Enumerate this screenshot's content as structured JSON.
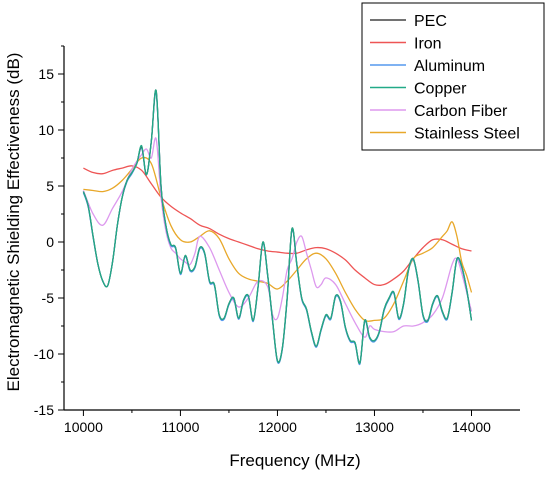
{
  "chart_data": {
    "type": "line",
    "title": "",
    "xlabel": "Frequency (MHz)",
    "ylabel": "Electromagnetic Shielding Effectiveness (dB)",
    "xlim": [
      9800,
      14500
    ],
    "ylim": [
      -15,
      17.5
    ],
    "xticks": [
      10000,
      11000,
      12000,
      13000,
      14000
    ],
    "yticks": [
      -15,
      -10,
      -5,
      0,
      5,
      10,
      15
    ],
    "grid": false,
    "legend_position": "top-right",
    "series": [
      {
        "name": "PEC",
        "color": "#444444",
        "x": [
          10000,
          10050,
          10100,
          10150,
          10200,
          10250,
          10300,
          10350,
          10400,
          10450,
          10500,
          10550,
          10600,
          10650,
          10700,
          10750,
          10800,
          10850,
          10900,
          10950,
          11000,
          11050,
          11100,
          11150,
          11200,
          11250,
          11300,
          11350,
          11400,
          11450,
          11500,
          11550,
          11600,
          11650,
          11700,
          11750,
          11800,
          11850,
          11900,
          11950,
          12000,
          12050,
          12100,
          12150,
          12200,
          12250,
          12300,
          12350,
          12400,
          12450,
          12500,
          12550,
          12600,
          12650,
          12700,
          12750,
          12800,
          12850,
          12900,
          12950,
          13000,
          13050,
          13100,
          13150,
          13200,
          13250,
          13300,
          13350,
          13400,
          13450,
          13500,
          13550,
          13600,
          13650,
          13700,
          13750,
          13800,
          13850,
          13900,
          13950,
          14000
        ],
        "y": [
          4.5,
          3.2,
          0.5,
          -2,
          -3.5,
          -3.9,
          -1.8,
          1.5,
          4,
          5.5,
          6.2,
          7,
          8.5,
          6,
          9,
          13.5,
          5,
          1.5,
          -0.2,
          -0.5,
          -2.8,
          -1.2,
          -2.5,
          -2.2,
          -0.5,
          -1,
          -3.5,
          -3.8,
          -6.5,
          -6.8,
          -5.5,
          -5,
          -6.8,
          -5.2,
          -4.8,
          -7,
          -4,
          0,
          -3,
          -7,
          -10.6,
          -9.5,
          -5,
          1.2,
          -2,
          -5,
          -6,
          -8,
          -9.3,
          -7.8,
          -6.5,
          -6.8,
          -4.8,
          -5.3,
          -7.6,
          -8.8,
          -9,
          -10.8,
          -7,
          -8.5,
          -8.8,
          -8,
          -6,
          -5,
          -4.5,
          -6.8,
          -5.5,
          -2.5,
          -1.5,
          -3.5,
          -6.5,
          -7,
          -5.5,
          -4.8,
          -6.2,
          -6.8,
          -4.5,
          -1.5,
          -2.2,
          -4.2,
          -7
        ]
      },
      {
        "name": "Iron",
        "color": "#ee5555",
        "x": [
          10000,
          10100,
          10200,
          10300,
          10400,
          10500,
          10600,
          10700,
          10800,
          10900,
          11000,
          11100,
          11200,
          11300,
          11400,
          11500,
          11600,
          11700,
          11800,
          11900,
          12000,
          12100,
          12200,
          12300,
          12400,
          12500,
          12600,
          12700,
          12800,
          12900,
          13000,
          13100,
          13200,
          13300,
          13400,
          13500,
          13600,
          13700,
          13800,
          13900,
          14000
        ],
        "y": [
          6.6,
          6.2,
          6.1,
          6.4,
          6.6,
          6.8,
          6.4,
          5.2,
          4,
          3.2,
          2.6,
          2.1,
          1.5,
          1.2,
          0.7,
          0.3,
          0,
          -0.3,
          -0.6,
          -0.8,
          -0.9,
          -1,
          -1,
          -0.7,
          -0.5,
          -0.6,
          -1,
          -1.6,
          -2.5,
          -3.2,
          -3.8,
          -3.8,
          -3.3,
          -2.6,
          -1.5,
          -0.5,
          0.2,
          0.2,
          -0.2,
          -0.6,
          -0.8
        ]
      },
      {
        "name": "Aluminum",
        "color": "#5599ee",
        "x": [
          10000,
          10050,
          10100,
          10150,
          10200,
          10250,
          10300,
          10350,
          10400,
          10450,
          10500,
          10550,
          10600,
          10650,
          10700,
          10750,
          10800,
          10850,
          10900,
          10950,
          11000,
          11050,
          11100,
          11150,
          11200,
          11250,
          11300,
          11350,
          11400,
          11450,
          11500,
          11550,
          11600,
          11650,
          11700,
          11750,
          11800,
          11850,
          11900,
          11950,
          12000,
          12050,
          12100,
          12150,
          12200,
          12250,
          12300,
          12350,
          12400,
          12450,
          12500,
          12550,
          12600,
          12650,
          12700,
          12750,
          12800,
          12850,
          12900,
          12950,
          13000,
          13050,
          13100,
          13150,
          13200,
          13250,
          13300,
          13350,
          13400,
          13450,
          13500,
          13550,
          13600,
          13650,
          13700,
          13750,
          13800,
          13850,
          13900,
          13950,
          14000
        ],
        "y": [
          4.4,
          3.1,
          0.4,
          -2,
          -3.5,
          -3.9,
          -1.8,
          1.5,
          4,
          5.4,
          6.1,
          7,
          8.4,
          6,
          9,
          13.3,
          5,
          1.4,
          -0.3,
          -0.6,
          -2.9,
          -1.3,
          -2.6,
          -2.3,
          -0.6,
          -1.1,
          -3.6,
          -3.9,
          -6.6,
          -6.9,
          -5.6,
          -5.1,
          -6.9,
          -5.3,
          -4.9,
          -7.1,
          -4.1,
          -0.1,
          -3.1,
          -7.1,
          -10.7,
          -9.6,
          -5.1,
          1.1,
          -2.1,
          -5.1,
          -6.1,
          -8.1,
          -9.4,
          -7.9,
          -6.6,
          -6.9,
          -4.9,
          -5.4,
          -7.7,
          -8.9,
          -9.1,
          -10.9,
          -7.1,
          -8.6,
          -8.9,
          -8.1,
          -6.1,
          -5.1,
          -4.6,
          -6.9,
          -5.6,
          -2.6,
          -1.6,
          -3.6,
          -6.6,
          -7.1,
          -5.6,
          -4.9,
          -6.3,
          -6.9,
          -4.6,
          -1.6,
          -2.3,
          -4.3,
          -7
        ]
      },
      {
        "name": "Copper",
        "color": "#22aa88",
        "x": [
          10000,
          10050,
          10100,
          10150,
          10200,
          10250,
          10300,
          10350,
          10400,
          10450,
          10500,
          10550,
          10600,
          10650,
          10700,
          10750,
          10800,
          10850,
          10900,
          10950,
          11000,
          11050,
          11100,
          11150,
          11200,
          11250,
          11300,
          11350,
          11400,
          11450,
          11500,
          11550,
          11600,
          11650,
          11700,
          11750,
          11800,
          11850,
          11900,
          11950,
          12000,
          12050,
          12100,
          12150,
          12200,
          12250,
          12300,
          12350,
          12400,
          12450,
          12500,
          12550,
          12600,
          12650,
          12700,
          12750,
          12800,
          12850,
          12900,
          12950,
          13000,
          13050,
          13100,
          13150,
          13200,
          13250,
          13300,
          13350,
          13400,
          13450,
          13500,
          13550,
          13600,
          13650,
          13700,
          13750,
          13800,
          13850,
          13900,
          13950,
          14000
        ],
        "y": [
          4.5,
          3.2,
          0.5,
          -2,
          -3.5,
          -3.9,
          -1.8,
          1.5,
          4,
          5.5,
          6.2,
          7,
          8.6,
          6,
          9,
          13.5,
          5,
          1.5,
          -0.2,
          -0.5,
          -2.8,
          -1.2,
          -2.5,
          -2.2,
          -0.5,
          -1,
          -3.5,
          -3.8,
          -6.5,
          -6.8,
          -5.5,
          -5,
          -6.8,
          -5.2,
          -4.8,
          -7,
          -4,
          0,
          -3,
          -7,
          -10.6,
          -9.5,
          -5,
          1.2,
          -2,
          -5,
          -6,
          -8,
          -9.3,
          -7.8,
          -6.5,
          -6.8,
          -4.8,
          -5.3,
          -7.6,
          -8.8,
          -9,
          -10.8,
          -7,
          -8.5,
          -8.8,
          -8,
          -6,
          -5,
          -4.5,
          -6.8,
          -5.5,
          -2.5,
          -1.5,
          -3.5,
          -6.5,
          -7,
          -5.5,
          -4.8,
          -6.2,
          -6.8,
          -4.5,
          -1.5,
          -2.2,
          -4.2,
          -7
        ]
      },
      {
        "name": "Carbon Fiber",
        "color": "#dd99ee",
        "x": [
          10000,
          10100,
          10200,
          10300,
          10400,
          10500,
          10600,
          10650,
          10700,
          10750,
          10800,
          10850,
          10900,
          10950,
          11000,
          11050,
          11100,
          11150,
          11200,
          11300,
          11400,
          11500,
          11600,
          11700,
          11800,
          11900,
          11950,
          12000,
          12050,
          12100,
          12150,
          12200,
          12250,
          12300,
          12350,
          12400,
          12450,
          12500,
          12600,
          12700,
          12800,
          12900,
          12950,
          13000,
          13100,
          13200,
          13300,
          13400,
          13500,
          13600,
          13700,
          13800,
          13850,
          13900,
          14000
        ],
        "y": [
          4.6,
          2.5,
          1.5,
          3,
          4.5,
          6.5,
          7.8,
          8.3,
          7.5,
          9.2,
          4,
          1,
          -0.5,
          -1,
          -1.5,
          -1.8,
          -2,
          -1,
          0.5,
          -0.5,
          -2.5,
          -4.5,
          -5.8,
          -5,
          -3.5,
          -4,
          -6.5,
          -6.8,
          -5,
          -2.5,
          -1.5,
          0,
          0.5,
          -1,
          -2.5,
          -4,
          -3.8,
          -3.2,
          -3.8,
          -5.5,
          -7.2,
          -8.5,
          -7.5,
          -7.8,
          -8,
          -8,
          -7.5,
          -7.5,
          -7.2,
          -6.5,
          -5,
          -2,
          -1.5,
          -2.8,
          -6.2
        ]
      },
      {
        "name": "Stainless Steel",
        "color": "#e8a82a",
        "x": [
          10000,
          10100,
          10200,
          10300,
          10400,
          10500,
          10600,
          10700,
          10800,
          10900,
          11000,
          11100,
          11200,
          11300,
          11400,
          11500,
          11600,
          11700,
          11800,
          11900,
          12000,
          12100,
          12200,
          12300,
          12400,
          12500,
          12600,
          12700,
          12800,
          12900,
          13000,
          13100,
          13200,
          13300,
          13400,
          13500,
          13600,
          13700,
          13750,
          13800,
          13850,
          13900,
          13950,
          14000
        ],
        "y": [
          4.7,
          4.6,
          4.5,
          4.8,
          5.5,
          6.5,
          7.5,
          7,
          4,
          1.5,
          0.2,
          0,
          0.5,
          1,
          0.3,
          -1.5,
          -2.8,
          -3.3,
          -3.5,
          -3.7,
          -4.2,
          -3.5,
          -2.5,
          -1.5,
          -1,
          -1.5,
          -2.8,
          -4.5,
          -6,
          -7,
          -7,
          -6.8,
          -5.5,
          -3.5,
          -1.5,
          -1,
          -0.5,
          0.5,
          1,
          1.8,
          0.5,
          -1.8,
          -3,
          -4.5
        ]
      }
    ]
  }
}
